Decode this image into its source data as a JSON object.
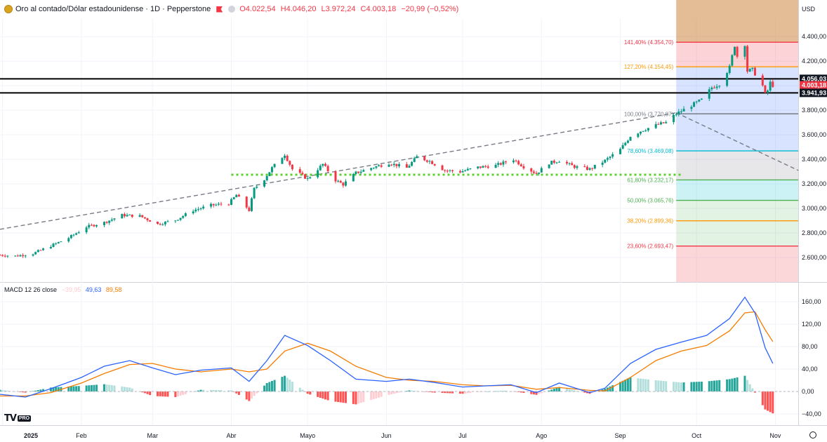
{
  "header": {
    "title": "Oro al contado/Dólar estadounidense · 1D · Pepperstone",
    "open": "O4.022,54",
    "high": "H4.046,20",
    "low": "L3.972,24",
    "close": "C4.003,18",
    "change": "−20,99 (−0,52%)"
  },
  "currency_label": "USD",
  "macd_header": {
    "name": "MACD 12 26 close",
    "hist": "−39,95",
    "macd": "49,63",
    "signal": "89,58"
  },
  "logo_text": "TV",
  "logo_badge": "PRO",
  "colors": {
    "up": "#089981",
    "down": "#f23645",
    "macd": "#2962ff",
    "signal": "#f57c00",
    "hist_up": "#26a69a",
    "hist_up_light": "#b2dfdb",
    "hist_dn": "#ff5252",
    "hist_dn_light": "#ffcdd2"
  },
  "chart_data": [
    {
      "type": "candlestick",
      "title": "Oro al contado/Dólar estadounidense · 1D · Pepperstone",
      "ylim": [
        2400,
        4550
      ],
      "y_ticks": [
        "2.600,00",
        "2.800,00",
        "3.000,00",
        "3.200,00",
        "3.400,00",
        "3.600,00",
        "3.800,00",
        "4.000,00",
        "4.200,00",
        "4.400,00"
      ],
      "y_tick_values": [
        2600,
        2800,
        3000,
        3200,
        3400,
        3600,
        3800,
        4000,
        4200,
        4400
      ],
      "x_ticks": [
        "2025",
        "Feb",
        "Mar",
        "Abr",
        "Mayo",
        "Jun",
        "Jul",
        "Ago",
        "Sep",
        "Oct",
        "Nov"
      ],
      "x_tick_dates": [
        "2025-01-01",
        "2025-02-01",
        "2025-03-01",
        "2025-04-01",
        "2025-05-01",
        "2025-06-01",
        "2025-07-01",
        "2025-08-01",
        "2025-09-01",
        "2025-10-01",
        "2025-11-01"
      ],
      "x_range": [
        "2024-12-31",
        "2025-11-10"
      ],
      "price_labels": [
        {
          "value": 4056.03,
          "text": "4.056,03",
          "color": "#131722"
        },
        {
          "value": 4003.18,
          "text": "4.003,18",
          "color": "#f23645"
        },
        {
          "value": 3941.93,
          "text": "3.941,93",
          "color": "#131722"
        }
      ],
      "horizontal_lines": [
        4056.03,
        3941.93
      ],
      "fib_levels": [
        {
          "value": 4354.7,
          "label": "141,40% (4.354,70)",
          "color": "#f23645"
        },
        {
          "value": 4154.45,
          "label": "127,20% (4.154,45)",
          "color": "#ff9800"
        },
        {
          "value": 3770.87,
          "label": "100,00% (3.770,87)",
          "color": "#787b86"
        },
        {
          "value": 3469.08,
          "label": "78,60% (3.469,08)",
          "color": "#00bcd4"
        },
        {
          "value": 3232.17,
          "label": "61,80% (3.232,17)",
          "color": "#4caf50"
        },
        {
          "value": 3065.76,
          "label": "50,00% (3.065,76)",
          "color": "#4caf50"
        },
        {
          "value": 2899.36,
          "label": "38,20% (2.899,36)",
          "color": "#ff9800"
        },
        {
          "value": 2693.47,
          "label": "23,60% (2.693,47)",
          "color": "#f23645"
        }
      ],
      "fib_start_date": "2025-09-23",
      "trend_line": {
        "from": [
          "2024-12-31",
          2830
        ],
        "to": [
          "2025-09-23",
          3780
        ]
      },
      "trend_line_2": {
        "from": [
          "2025-09-23",
          3780
        ],
        "to": [
          "2025-11-10",
          3310
        ]
      },
      "support_line": {
        "value": 3275,
        "from": "2025-04-01",
        "to": "2025-09-25"
      },
      "close_path": [
        [
          "2024-12-31",
          2620
        ],
        [
          "2025-01-06",
          2612
        ],
        [
          "2025-01-13",
          2632
        ],
        [
          "2025-01-20",
          2695
        ],
        [
          "2025-01-27",
          2760
        ],
        [
          "2025-02-03",
          2850
        ],
        [
          "2025-02-10",
          2885
        ],
        [
          "2025-02-17",
          2945
        ],
        [
          "2025-02-24",
          2938
        ],
        [
          "2025-03-03",
          2872
        ],
        [
          "2025-03-10",
          2905
        ],
        [
          "2025-03-17",
          2985
        ],
        [
          "2025-03-24",
          3025
        ],
        [
          "2025-03-31",
          3040
        ],
        [
          "2025-04-03",
          3110
        ],
        [
          "2025-04-08",
          2985
        ],
        [
          "2025-04-10",
          3160
        ],
        [
          "2025-04-14",
          3240
        ],
        [
          "2025-04-17",
          3330
        ],
        [
          "2025-04-22",
          3440
        ],
        [
          "2025-04-25",
          3320
        ],
        [
          "2025-05-01",
          3240
        ],
        [
          "2025-05-07",
          3360
        ],
        [
          "2025-05-12",
          3230
        ],
        [
          "2025-05-15",
          3195
        ],
        [
          "2025-05-20",
          3290
        ],
        [
          "2025-05-26",
          3330
        ],
        [
          "2025-06-02",
          3370
        ],
        [
          "2025-06-09",
          3330
        ],
        [
          "2025-06-13",
          3420
        ],
        [
          "2025-06-18",
          3385
        ],
        [
          "2025-06-24",
          3310
        ],
        [
          "2025-06-30",
          3300
        ],
        [
          "2025-07-07",
          3335
        ],
        [
          "2025-07-14",
          3350
        ],
        [
          "2025-07-21",
          3400
        ],
        [
          "2025-07-25",
          3340
        ],
        [
          "2025-07-30",
          3285
        ],
        [
          "2025-08-04",
          3370
        ],
        [
          "2025-08-08",
          3390
        ],
        [
          "2025-08-14",
          3340
        ],
        [
          "2025-08-20",
          3320
        ],
        [
          "2025-08-26",
          3390
        ],
        [
          "2025-09-01",
          3480
        ],
        [
          "2025-09-05",
          3590
        ],
        [
          "2025-09-10",
          3640
        ],
        [
          "2025-09-16",
          3685
        ],
        [
          "2025-09-19",
          3700
        ],
        [
          "2025-09-23",
          3770
        ],
        [
          "2025-09-29",
          3840
        ],
        [
          "2025-10-03",
          3885
        ],
        [
          "2025-10-07",
          3985
        ],
        [
          "2025-10-10",
          4015
        ],
        [
          "2025-10-14",
          4150
        ],
        [
          "2025-10-16",
          4330
        ],
        [
          "2025-10-17",
          4240
        ],
        [
          "2025-10-20",
          4340
        ],
        [
          "2025-10-21",
          4120
        ],
        [
          "2025-10-23",
          4130
        ],
        [
          "2025-10-27",
          4000
        ],
        [
          "2025-10-28",
          3930
        ],
        [
          "2025-10-29",
          3960
        ],
        [
          "2025-10-30",
          4025
        ],
        [
          "2025-10-31",
          4003
        ]
      ]
    },
    {
      "type": "macd",
      "title": "MACD 12 26 close",
      "ylim": [
        -60,
        180
      ],
      "y_ticks": [
        "160,00",
        "120,00",
        "80,00",
        "40,00",
        "0,00",
        "−40,00"
      ],
      "y_tick_values": [
        160,
        120,
        80,
        40,
        0,
        -40
      ],
      "series": [
        {
          "name": "MACD",
          "values": [
            [
              "2024-12-31",
              -5
            ],
            [
              "2025-01-10",
              -10
            ],
            [
              "2025-01-20",
              5
            ],
            [
              "2025-02-01",
              25
            ],
            [
              "2025-02-10",
              45
            ],
            [
              "2025-02-20",
              55
            ],
            [
              "2025-03-01",
              42
            ],
            [
              "2025-03-10",
              30
            ],
            [
              "2025-03-20",
              38
            ],
            [
              "2025-04-01",
              42
            ],
            [
              "2025-04-08",
              18
            ],
            [
              "2025-04-15",
              55
            ],
            [
              "2025-04-22",
              100
            ],
            [
              "2025-05-01",
              82
            ],
            [
              "2025-05-10",
              55
            ],
            [
              "2025-05-20",
              22
            ],
            [
              "2025-06-01",
              18
            ],
            [
              "2025-06-10",
              22
            ],
            [
              "2025-06-20",
              16
            ],
            [
              "2025-07-01",
              8
            ],
            [
              "2025-07-10",
              10
            ],
            [
              "2025-07-20",
              12
            ],
            [
              "2025-07-30",
              -2
            ],
            [
              "2025-08-08",
              15
            ],
            [
              "2025-08-20",
              -2
            ],
            [
              "2025-08-26",
              6
            ],
            [
              "2025-09-05",
              50
            ],
            [
              "2025-09-15",
              75
            ],
            [
              "2025-09-25",
              88
            ],
            [
              "2025-10-05",
              100
            ],
            [
              "2025-10-14",
              130
            ],
            [
              "2025-10-20",
              168
            ],
            [
              "2025-10-24",
              140
            ],
            [
              "2025-10-28",
              78
            ],
            [
              "2025-10-31",
              50
            ]
          ]
        },
        {
          "name": "Signal",
          "values": [
            [
              "2024-12-31",
              -8
            ],
            [
              "2025-01-10",
              -8
            ],
            [
              "2025-01-20",
              -2
            ],
            [
              "2025-02-01",
              15
            ],
            [
              "2025-02-10",
              32
            ],
            [
              "2025-02-20",
              48
            ],
            [
              "2025-03-01",
              50
            ],
            [
              "2025-03-10",
              40
            ],
            [
              "2025-03-20",
              35
            ],
            [
              "2025-04-01",
              40
            ],
            [
              "2025-04-08",
              35
            ],
            [
              "2025-04-15",
              40
            ],
            [
              "2025-04-22",
              72
            ],
            [
              "2025-05-01",
              86
            ],
            [
              "2025-05-10",
              72
            ],
            [
              "2025-05-20",
              45
            ],
            [
              "2025-06-01",
              25
            ],
            [
              "2025-06-10",
              20
            ],
            [
              "2025-06-20",
              18
            ],
            [
              "2025-07-01",
              12
            ],
            [
              "2025-07-10",
              10
            ],
            [
              "2025-07-20",
              11
            ],
            [
              "2025-07-30",
              4
            ],
            [
              "2025-08-08",
              7
            ],
            [
              "2025-08-20",
              2
            ],
            [
              "2025-08-26",
              1
            ],
            [
              "2025-09-05",
              25
            ],
            [
              "2025-09-15",
              55
            ],
            [
              "2025-09-25",
              72
            ],
            [
              "2025-10-05",
              82
            ],
            [
              "2025-10-14",
              108
            ],
            [
              "2025-10-20",
              140
            ],
            [
              "2025-10-24",
              142
            ],
            [
              "2025-10-28",
              110
            ],
            [
              "2025-10-31",
              89
            ]
          ]
        }
      ]
    }
  ]
}
